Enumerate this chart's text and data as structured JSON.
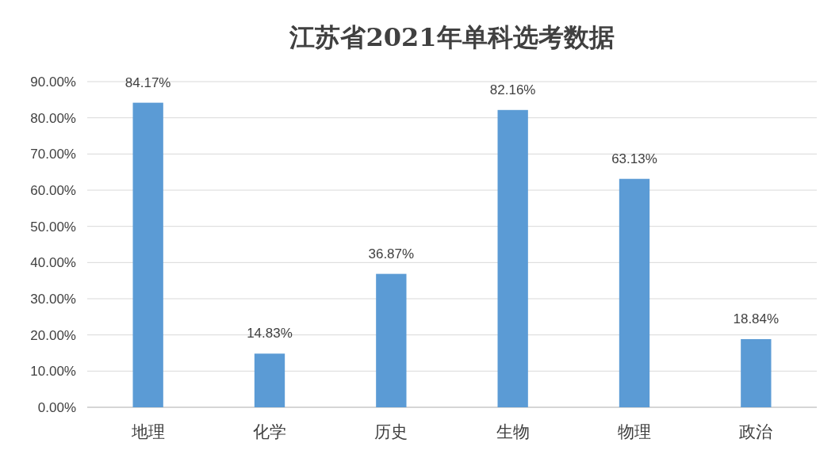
{
  "chart_data": {
    "type": "bar",
    "title": "江苏省2021年单科选考数据",
    "categories": [
      "地理",
      "化学",
      "历史",
      "生物",
      "物理",
      "政治"
    ],
    "values": [
      84.17,
      14.83,
      36.87,
      82.16,
      63.13,
      18.84
    ],
    "value_labels": [
      "84.17%",
      "14.83%",
      "36.87%",
      "82.16%",
      "63.13%",
      "18.84%"
    ],
    "color": "#5b9bd5",
    "ylim": [
      0,
      90
    ],
    "yticks": [
      {
        "value": 0,
        "label": "0.00%"
      },
      {
        "value": 10,
        "label": "10.00%"
      },
      {
        "value": 20,
        "label": "20.00%"
      },
      {
        "value": 30,
        "label": "30.00%"
      },
      {
        "value": 40,
        "label": "40.00%"
      },
      {
        "value": 50,
        "label": "50.00%"
      },
      {
        "value": 60,
        "label": "60.00%"
      },
      {
        "value": 70,
        "label": "70.00%"
      },
      {
        "value": 80,
        "label": "80.00%"
      },
      {
        "value": 90,
        "label": "90.00%"
      }
    ],
    "grid": "y"
  }
}
